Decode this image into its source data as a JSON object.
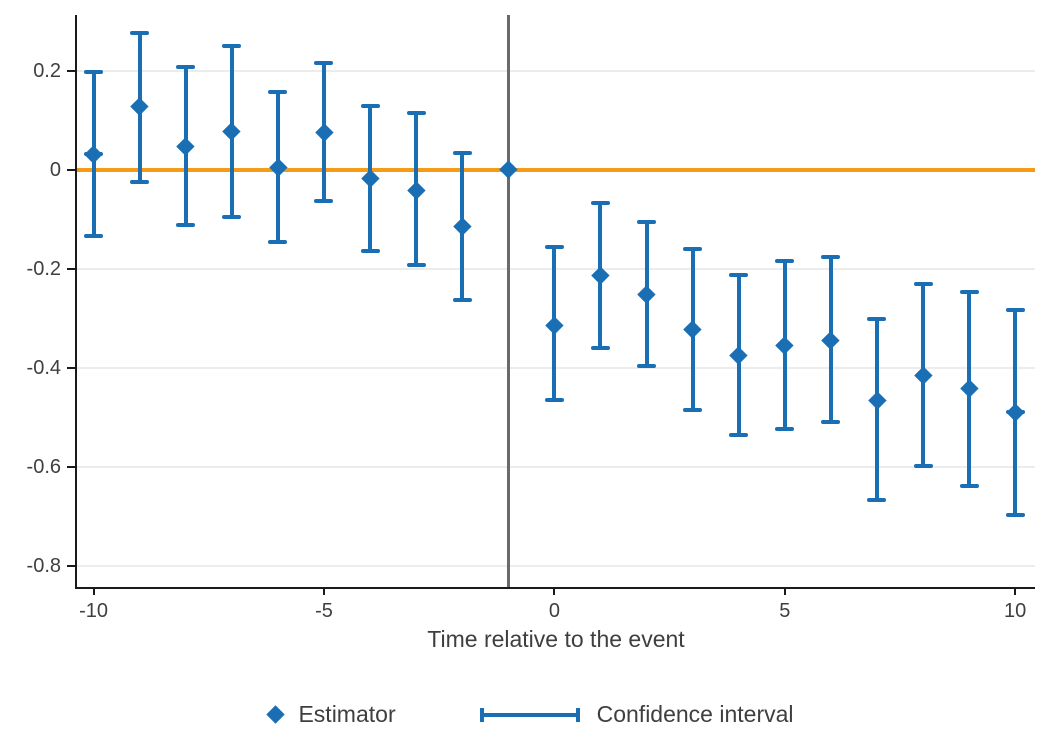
{
  "colors": {
    "estimator": "#1A6EB4",
    "zero_line": "#F59B15",
    "event_line": "#6A6A6A",
    "grid": "#ECECEC",
    "axis": "#1A1A1A",
    "text": "#3F3F3F"
  },
  "legend": {
    "estimator_label": "Estimator",
    "ci_label": "Confidence interval"
  },
  "chart_data": {
    "type": "scatter",
    "subtype": "event-study errorbar plot",
    "title": "",
    "xlabel": "Time relative to the event",
    "ylabel": "",
    "x_ticks": [
      -10,
      -5,
      0,
      5,
      10
    ],
    "y_ticks": [
      0.2,
      0,
      -0.2,
      -0.4,
      -0.6,
      -0.8
    ],
    "xlim": [
      -10.36,
      10.43
    ],
    "ylim": [
      -0.843,
      0.313
    ],
    "grid": "horizontal only",
    "zero_line_y": 0,
    "event_line_x": -1,
    "legend_position": "bottom center",
    "series": [
      {
        "name": "Estimator",
        "points": [
          {
            "t": -10,
            "estimate": 0.032,
            "ci_low": -0.133,
            "ci_high": 0.197,
            "cap_at_estimate": true
          },
          {
            "t": -9,
            "estimate": 0.128,
            "ci_low": -0.024,
            "ci_high": 0.277
          },
          {
            "t": -8,
            "estimate": 0.047,
            "ci_low": -0.111,
            "ci_high": 0.207
          },
          {
            "t": -7,
            "estimate": 0.078,
            "ci_low": -0.095,
            "ci_high": 0.251
          },
          {
            "t": -6,
            "estimate": 0.004,
            "ci_low": -0.146,
            "ci_high": 0.157
          },
          {
            "t": -5,
            "estimate": 0.076,
            "ci_low": -0.063,
            "ci_high": 0.215
          },
          {
            "t": -4,
            "estimate": -0.018,
            "ci_low": -0.163,
            "ci_high": 0.13
          },
          {
            "t": -3,
            "estimate": -0.041,
            "ci_low": -0.192,
            "ci_high": 0.115
          },
          {
            "t": -2,
            "estimate": -0.115,
            "ci_low": -0.263,
            "ci_high": 0.035
          },
          {
            "t": -1,
            "estimate": 0.0,
            "ci_low": null,
            "ci_high": null,
            "reference": true
          },
          {
            "t": 0,
            "estimate": -0.314,
            "ci_low": -0.466,
            "ci_high": -0.156
          },
          {
            "t": 1,
            "estimate": -0.213,
            "ci_low": -0.36,
            "ci_high": -0.066
          },
          {
            "t": 2,
            "estimate": -0.252,
            "ci_low": -0.396,
            "ci_high": -0.106
          },
          {
            "t": 3,
            "estimate": -0.323,
            "ci_low": -0.485,
            "ci_high": -0.16
          },
          {
            "t": 4,
            "estimate": -0.374,
            "ci_low": -0.536,
            "ci_high": -0.213
          },
          {
            "t": 5,
            "estimate": -0.354,
            "ci_low": -0.524,
            "ci_high": -0.184
          },
          {
            "t": 6,
            "estimate": -0.344,
            "ci_low": -0.51,
            "ci_high": -0.177
          },
          {
            "t": 7,
            "estimate": -0.465,
            "ci_low": -0.667,
            "ci_high": -0.302
          },
          {
            "t": 8,
            "estimate": -0.416,
            "ci_low": -0.599,
            "ci_high": -0.23
          },
          {
            "t": 9,
            "estimate": -0.442,
            "ci_low": -0.639,
            "ci_high": -0.246
          },
          {
            "t": 10,
            "estimate": -0.49,
            "ci_low": -0.698,
            "ci_high": -0.283,
            "cap_at_estimate": true
          }
        ]
      }
    ]
  }
}
